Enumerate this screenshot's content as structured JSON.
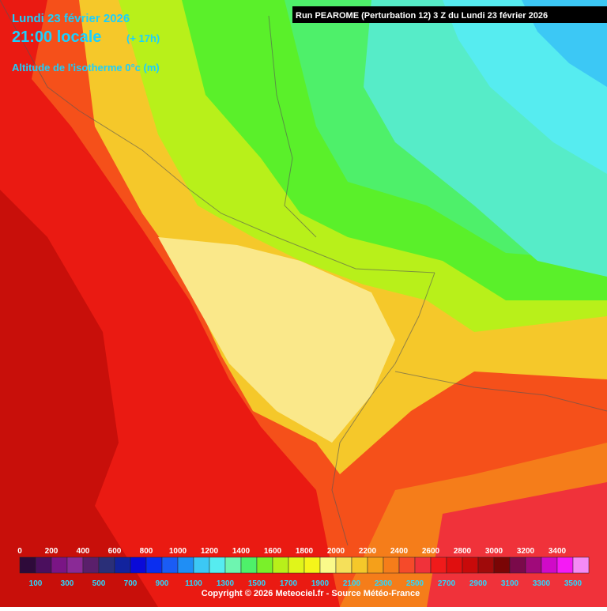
{
  "header": {
    "date": "Lundi 23 février 2026",
    "time": "21:00 locale",
    "offset": "(+ 17h)",
    "parameter": "Altitude de l'isotherme 0°c (m)",
    "run": "Run PEAROME (Perturbation 12) 3 Z du Lundi 23 février 2026"
  },
  "legend": {
    "colors": [
      "#2e0a3a",
      "#4b0f5e",
      "#7a1585",
      "#8a2a96",
      "#5a1f6b",
      "#2a2f78",
      "#12239e",
      "#0a0ad8",
      "#0a2ef0",
      "#1a5cf5",
      "#1f8ef5",
      "#3cc8f5",
      "#56ecf0",
      "#6ef5b0",
      "#4ef06a",
      "#7af02a",
      "#b8f01a",
      "#e0f51a",
      "#f5f51a",
      "#fafa8a",
      "#f5e05a",
      "#f5c82a",
      "#f5a01a",
      "#f57d1a",
      "#f54a2a",
      "#f0323a",
      "#f01a1a",
      "#e00f0f",
      "#c80a0a",
      "#a00a0a",
      "#7a0505",
      "#7a0a4a",
      "#a00a7a",
      "#d00ac8",
      "#f51af5",
      "#f58af5"
    ],
    "top_labels": [
      0,
      200,
      400,
      600,
      800,
      1000,
      1200,
      1400,
      1600,
      1800,
      2000,
      2200,
      2400,
      2600,
      2800,
      3000,
      3200,
      3400
    ],
    "bottom_labels": [
      100,
      300,
      500,
      700,
      900,
      1100,
      1300,
      1500,
      1700,
      1900,
      2100,
      2300,
      2500,
      2700,
      2900,
      3100,
      3300,
      3500
    ]
  },
  "footer": {
    "copyright": "Copyright © 2026 Meteociel.fr - Source Météo-France"
  }
}
